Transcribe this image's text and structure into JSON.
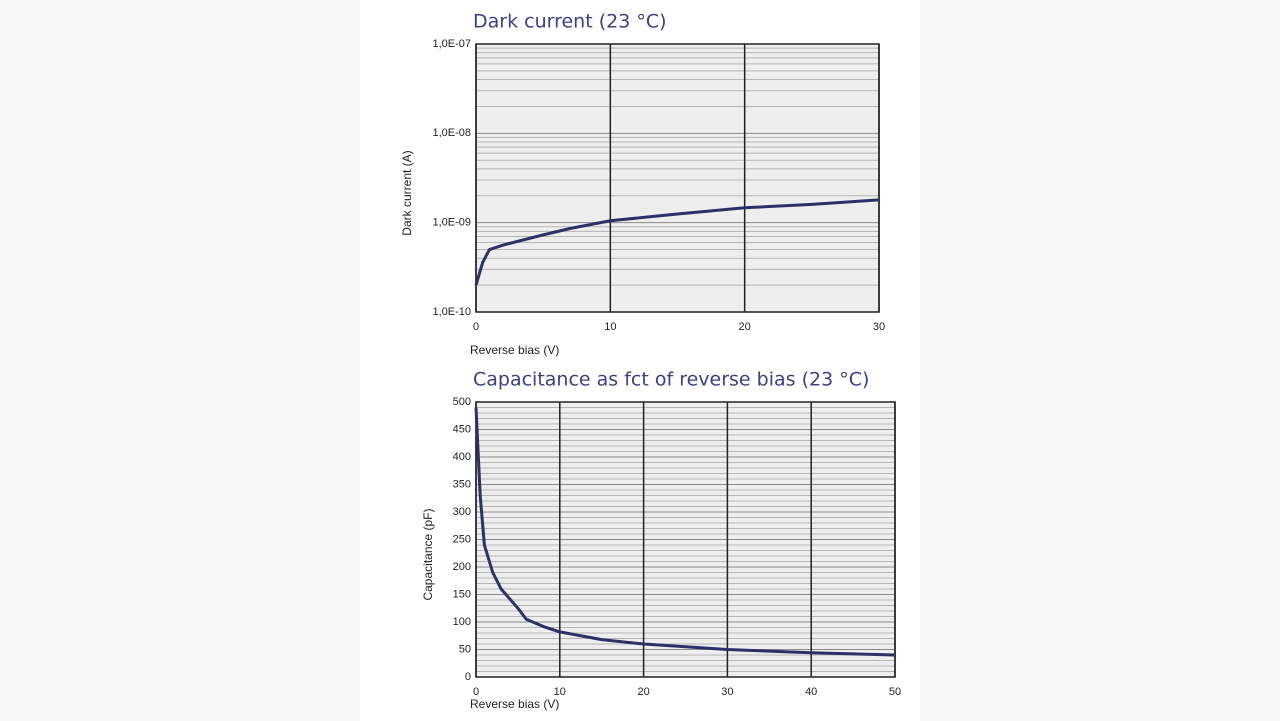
{
  "chart_data": [
    {
      "type": "line",
      "title": "Dark current (23 °C)",
      "x_label": "Reverse bias (V)",
      "y_label": "Dark current  (A)",
      "x": [
        0,
        0.5,
        1,
        2,
        5,
        7,
        10,
        15,
        20,
        25,
        30
      ],
      "values": [
        2e-10,
        3.6e-10,
        5e-10,
        5.6e-10,
        7.3e-10,
        8.6e-10,
        1.05e-09,
        1.25e-09,
        1.47e-09,
        1.6e-09,
        1.8e-09
      ],
      "color": "#2e3168",
      "log_y": true,
      "grid": true,
      "minor_grid": true,
      "xlim": [
        0,
        30
      ],
      "xticks": [
        0,
        10,
        20,
        30
      ],
      "ylim": [
        1e-10,
        1e-07
      ],
      "yticks": [
        {
          "value": 1e-10,
          "label": "1,0E-10"
        },
        {
          "value": 1e-09,
          "label": "1,0E-09"
        },
        {
          "value": 1e-08,
          "label": "1,0E-08"
        },
        {
          "value": 1e-07,
          "label": "1,0E-07"
        }
      ]
    },
    {
      "type": "line",
      "title": "Capacitance as fct of reverse bias (23 °C)",
      "x_label": "Reverse bias (V)",
      "y_label": "Capacitance (pF)",
      "x": [
        0,
        0.5,
        1,
        2,
        3,
        5,
        6,
        8,
        10,
        15,
        20,
        30,
        40,
        50
      ],
      "values": [
        490,
        330,
        240,
        190,
        160,
        125,
        105,
        92,
        82,
        68,
        60,
        50,
        44,
        40
      ],
      "color": "#2e3168",
      "log_y": false,
      "grid": true,
      "minor_grid": true,
      "xlim": [
        0,
        50
      ],
      "xticks": [
        0,
        10,
        20,
        30,
        40,
        50
      ],
      "ylim": [
        0,
        500
      ],
      "yticks": [
        0,
        50,
        100,
        150,
        200,
        250,
        300,
        350,
        400,
        450,
        500
      ]
    }
  ]
}
